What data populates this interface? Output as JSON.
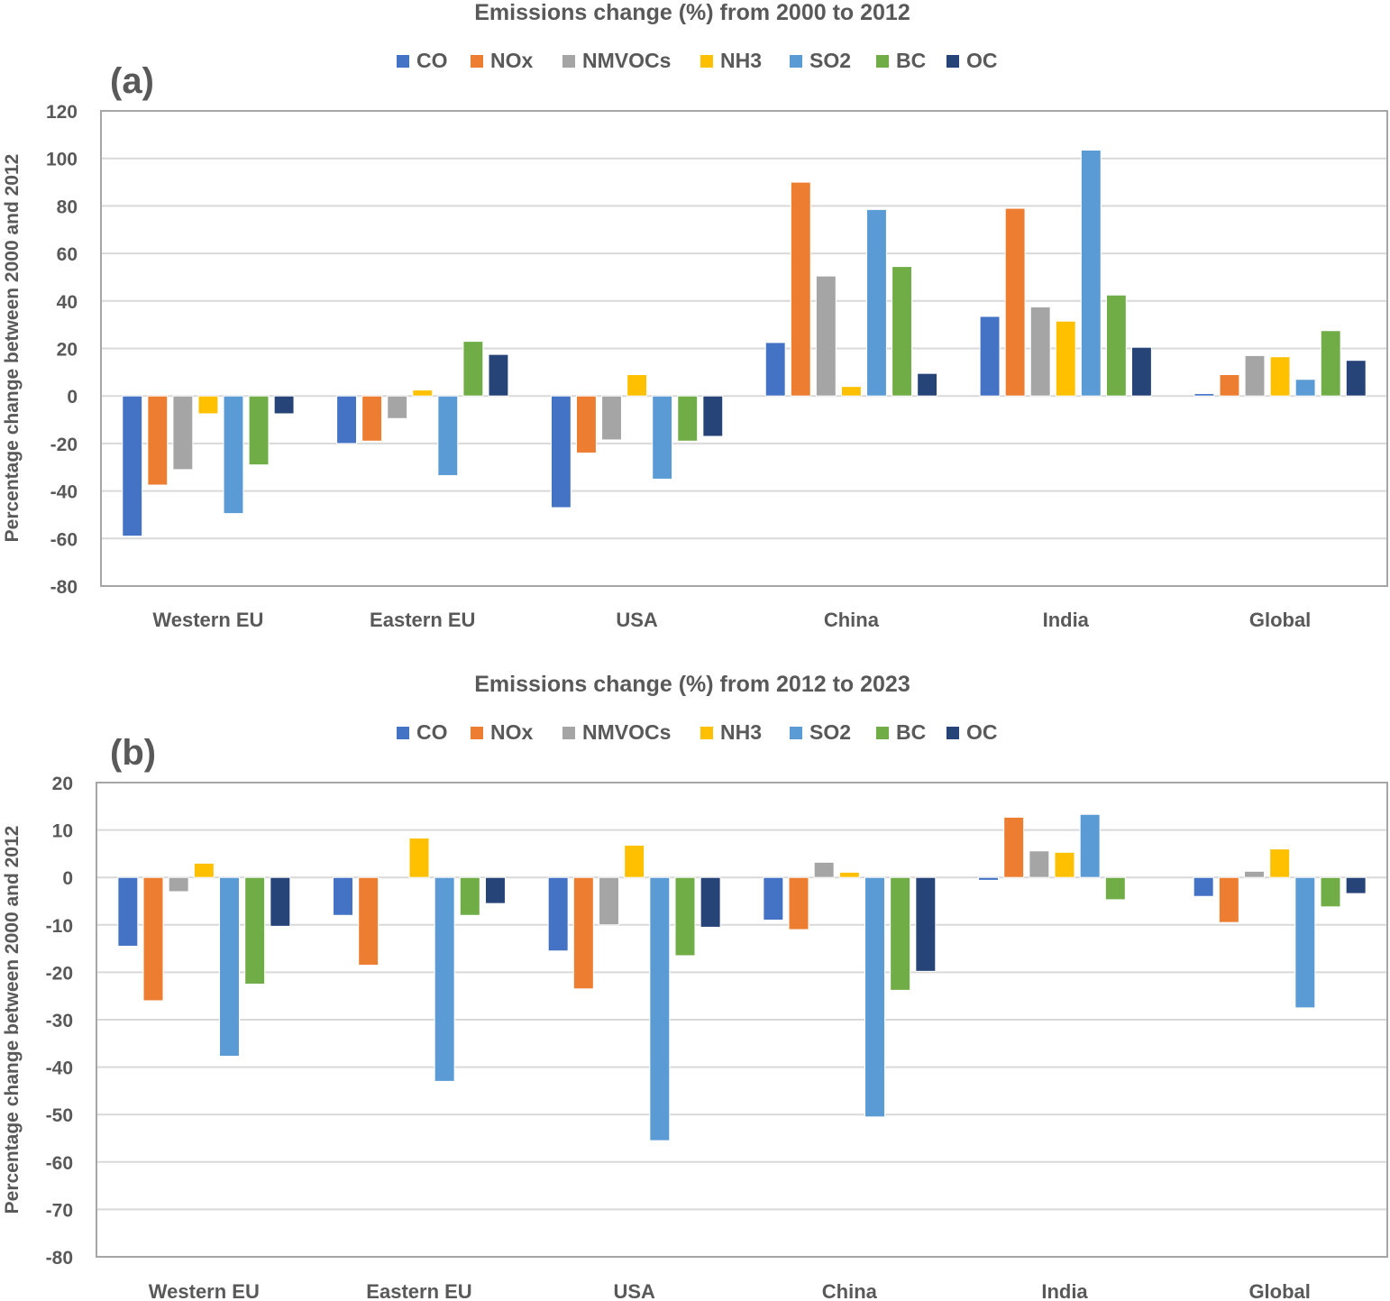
{
  "chart_data": [
    {
      "type": "bar",
      "panel_label": "(a)",
      "title": "Emissions change (%) from 2000 to 2012",
      "xlabel": "",
      "ylabel": "Percentage change between 2000 and 2012",
      "ylim": [
        -80,
        120
      ],
      "yticks": [
        120,
        100,
        80,
        60,
        40,
        20,
        0,
        -20,
        -40,
        -60,
        -80
      ],
      "grid": true,
      "legend_position": "top",
      "categories": [
        "Western EU",
        "Eastern EU",
        "USA",
        "China",
        "India",
        "Global"
      ],
      "series": [
        {
          "name": "CO",
          "color": "#4472C4",
          "values": [
            -59,
            -20,
            -47,
            22.5,
            33.5,
            1
          ]
        },
        {
          "name": "NOx",
          "color": "#ED7D31",
          "values": [
            -37.5,
            -19,
            -24,
            90,
            79,
            9
          ]
        },
        {
          "name": "NMVOCs",
          "color": "#A5A5A5",
          "values": [
            -31,
            -9.5,
            -18.5,
            50.5,
            37.5,
            17
          ]
        },
        {
          "name": "NH3",
          "color": "#FFC000",
          "values": [
            -7.5,
            2.5,
            9,
            4,
            31.5,
            16.5
          ]
        },
        {
          "name": "SO2",
          "color": "#5B9BD5",
          "values": [
            -49.5,
            -33.5,
            -35,
            78.5,
            103.5,
            7
          ]
        },
        {
          "name": "BC",
          "color": "#70AD47",
          "values": [
            -29,
            23,
            -19,
            54.5,
            42.5,
            27.5
          ]
        },
        {
          "name": "OC",
          "color": "#264478",
          "values": [
            -7.5,
            17.5,
            -17,
            9.5,
            20.5,
            15
          ]
        }
      ]
    },
    {
      "type": "bar",
      "panel_label": "(b)",
      "title": "Emissions change (%) from 2012 to 2023",
      "xlabel": "",
      "ylabel": "Percentage change between 2000 and 2012",
      "ylim": [
        -80,
        20
      ],
      "yticks": [
        20,
        10,
        0,
        -10,
        -20,
        -30,
        -40,
        -50,
        -60,
        -70,
        -80
      ],
      "grid": true,
      "legend_position": "top",
      "categories": [
        "Western EU",
        "Eastern EU",
        "USA",
        "China",
        "India",
        "Global"
      ],
      "series": [
        {
          "name": "CO",
          "color": "#4472C4",
          "values": [
            -14.5,
            -8,
            -15.5,
            -9,
            -0.6,
            -4
          ]
        },
        {
          "name": "NOx",
          "color": "#ED7D31",
          "values": [
            -26,
            -18.5,
            -23.5,
            -11,
            12.7,
            -9.5
          ]
        },
        {
          "name": "NMVOCs",
          "color": "#A5A5A5",
          "values": [
            -3,
            0,
            -10,
            3.2,
            5.6,
            1.3
          ]
        },
        {
          "name": "NH3",
          "color": "#FFC000",
          "values": [
            3,
            8.3,
            6.8,
            1.1,
            5.3,
            6
          ]
        },
        {
          "name": "SO2",
          "color": "#5B9BD5",
          "values": [
            -37.7,
            -43,
            -55.5,
            -50.5,
            13.3,
            -27.5
          ]
        },
        {
          "name": "BC",
          "color": "#70AD47",
          "values": [
            -22.5,
            -8,
            -16.5,
            -23.8,
            -4.7,
            -6.2
          ]
        },
        {
          "name": "OC",
          "color": "#264478",
          "values": [
            -10.3,
            -5.5,
            -10.5,
            -19.8,
            0,
            -3.4
          ]
        }
      ]
    }
  ]
}
